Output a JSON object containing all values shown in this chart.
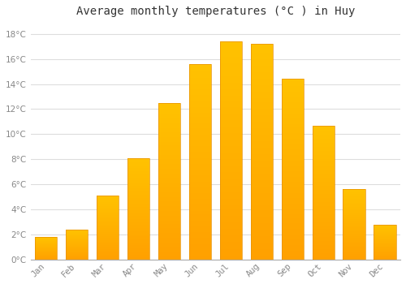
{
  "title": "Average monthly temperatures (°C ) in Huy",
  "months": [
    "Jan",
    "Feb",
    "Mar",
    "Apr",
    "May",
    "Jun",
    "Jul",
    "Aug",
    "Sep",
    "Oct",
    "Nov",
    "Dec"
  ],
  "temperatures": [
    1.8,
    2.4,
    5.1,
    8.1,
    12.5,
    15.6,
    17.4,
    17.2,
    14.4,
    10.7,
    5.6,
    2.8
  ],
  "bar_color_top": "#FFC200",
  "bar_color_bottom": "#FFA000",
  "background_color": "#FFFFFF",
  "grid_color": "#DDDDDD",
  "title_fontsize": 10,
  "tick_label_fontsize": 7.5,
  "axis_label_color": "#888888",
  "ylim": [
    0,
    19
  ],
  "yticks": [
    0,
    2,
    4,
    6,
    8,
    10,
    12,
    14,
    16,
    18
  ]
}
